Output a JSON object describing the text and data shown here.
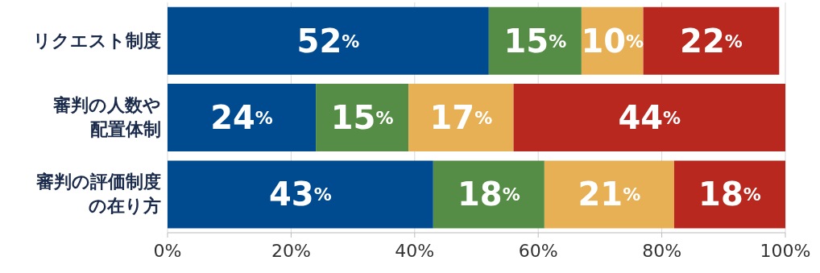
{
  "chart_data": {
    "type": "bar",
    "orientation": "horizontal",
    "stacked": true,
    "categories": [
      "リクエスト制度",
      "審判の人数や配置体制",
      "審判の評価制度の在り方"
    ],
    "series": [
      {
        "color": "#004a8f",
        "values": [
          52,
          24,
          43
        ],
        "value_labels": [
          "52%",
          "24%",
          "43%"
        ]
      },
      {
        "color": "#568d46",
        "values": [
          15,
          15,
          18
        ],
        "value_labels": [
          "15%",
          "15%",
          "18%"
        ]
      },
      {
        "color": "#e8b055",
        "values": [
          10,
          17,
          21
        ],
        "value_labels": [
          "10%",
          "17%",
          "21%"
        ]
      },
      {
        "color": "#b8281e",
        "values": [
          22,
          44,
          18
        ],
        "value_labels": [
          "22%",
          "44%",
          "18%"
        ]
      }
    ],
    "xlim": [
      0,
      100
    ],
    "xticks": [
      {
        "value": 0,
        "label": "0%"
      },
      {
        "value": 20,
        "label": "20%"
      },
      {
        "value": 40,
        "label": "40%"
      },
      {
        "value": 60,
        "label": "60%"
      },
      {
        "value": 80,
        "label": "80%"
      },
      {
        "value": 100,
        "label": "100%"
      }
    ],
    "grid": "x",
    "legend": false
  }
}
